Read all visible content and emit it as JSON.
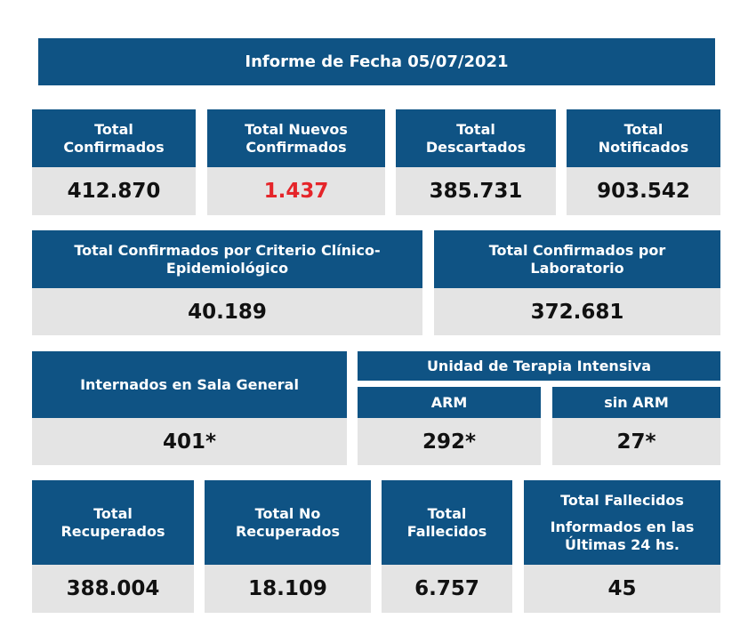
{
  "report": {
    "title": "Informe de Fecha 05/07/2021"
  },
  "row1": [
    {
      "label": "Total Confirmados",
      "value": "412.870"
    },
    {
      "label": "Total Nuevos Confirmados",
      "value": "1.437"
    },
    {
      "label": "Total Descartados",
      "value": "385.731"
    },
    {
      "label": "Total Notificados",
      "value": "903.542"
    }
  ],
  "row2": [
    {
      "label": "Total Confirmados por Criterio Clínico-Epidemiológico",
      "value": "40.189"
    },
    {
      "label": "Total Confirmados por Laboratorio",
      "value": "372.681"
    }
  ],
  "row3": {
    "general": {
      "label": "Internados en Sala General",
      "value": "401*"
    },
    "uti": {
      "label": "Unidad de Terapia Intensiva",
      "arm": {
        "label": "ARM",
        "value": "292*"
      },
      "sin_arm": {
        "label": "sin ARM",
        "value": "27*"
      }
    }
  },
  "row4": [
    {
      "label": "Total Recuperados",
      "value": "388.004"
    },
    {
      "label": "Total No Recuperados",
      "value": "18.109"
    },
    {
      "label": "Total Fallecidos",
      "value": "6.757"
    },
    {
      "label_1": "Total Fallecidos",
      "label_2": "Informados en las Últimas 24 hs.",
      "value": "45"
    }
  ],
  "colors": {
    "header_blue": "#0f5384",
    "value_bg": "#e4e4e4",
    "highlight_red": "#e5252a"
  }
}
